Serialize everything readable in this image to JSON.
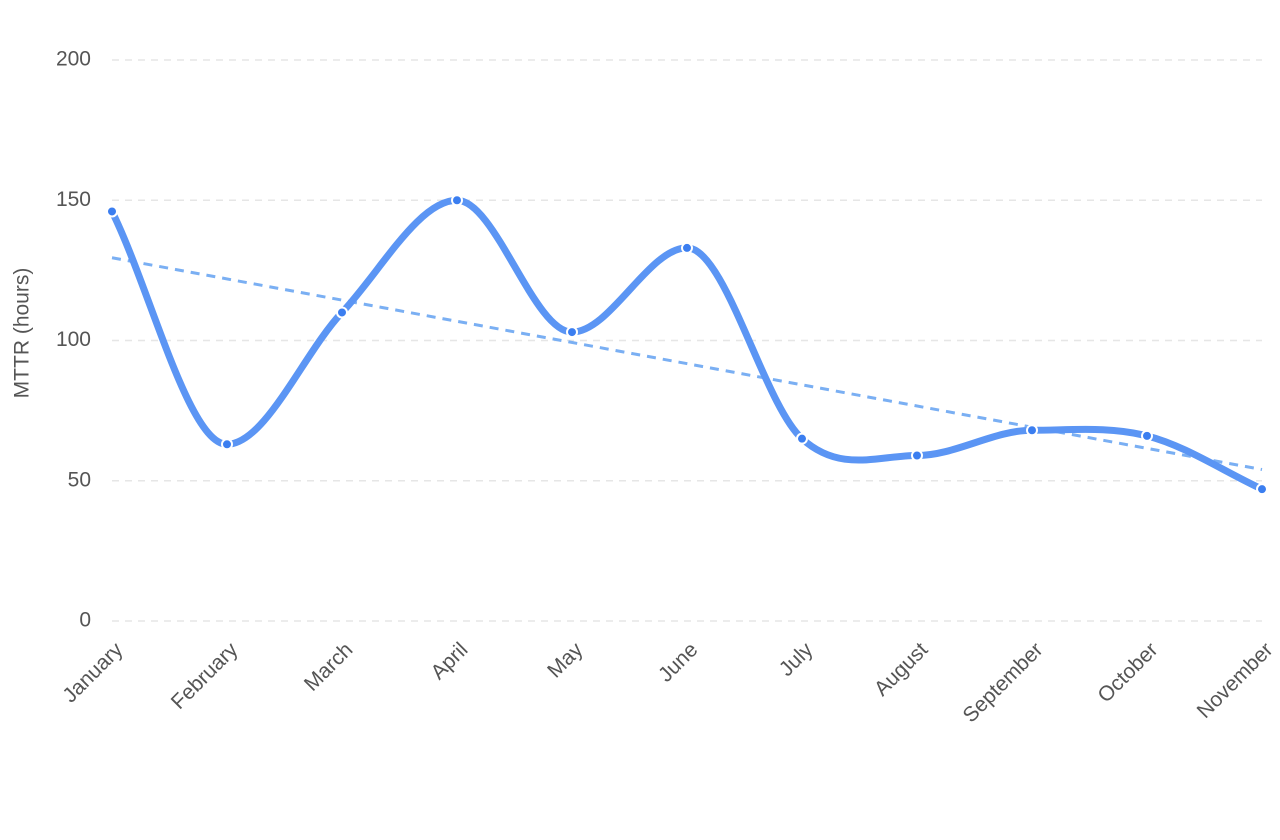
{
  "chart_data": {
    "type": "line",
    "categories": [
      "January",
      "February",
      "March",
      "April",
      "May",
      "June",
      "July",
      "August",
      "September",
      "October",
      "November"
    ],
    "series": [
      {
        "values": [
          146,
          63,
          110,
          150,
          103,
          133,
          65,
          59,
          68,
          66,
          47
        ]
      }
    ],
    "trendline": {
      "style": "dashed",
      "start": 129.5,
      "end": 54
    },
    "title": "",
    "xlabel": "",
    "ylabel": "MTTR (hours)",
    "ylim": [
      0,
      200
    ],
    "yticks": [
      "0",
      "50",
      "100",
      "150",
      "200"
    ],
    "grid": true,
    "legend": "none",
    "colors": {
      "series": "#5b95f4",
      "point": "#3b7ef0",
      "trend": "#7aaff3",
      "grid": "#e6e6e6",
      "text": "#555555"
    }
  }
}
